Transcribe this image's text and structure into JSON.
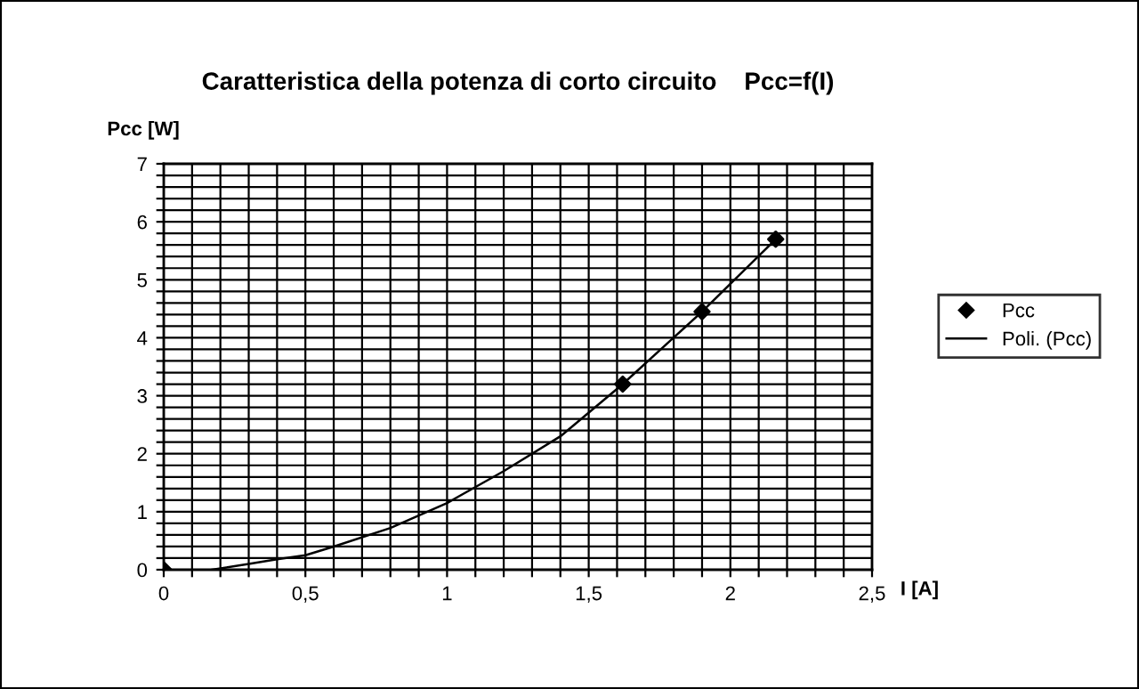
{
  "chart_data": {
    "type": "scatter",
    "title": "Caratteristica della potenza di corto circuito    Pcc=f(I)",
    "xlabel": "I [A]",
    "ylabel": "Pcc [W]",
    "series": [
      {
        "name": "Pcc",
        "color": "#000000",
        "marker": "diamond",
        "x": [
          0,
          1.62,
          1.9,
          2.16
        ],
        "values": [
          0,
          3.2,
          4.45,
          5.7
        ]
      },
      {
        "name": "Poli. (Pcc)",
        "type": "line",
        "color": "#000000",
        "marker": "none",
        "line_style": "solid",
        "x": [
          0.17,
          0.3,
          0.4,
          0.5,
          0.6,
          0.8,
          1.0,
          1.2,
          1.4,
          1.62,
          1.9,
          2.16
        ],
        "values": [
          0,
          0.1,
          0.18,
          0.25,
          0.4,
          0.72,
          1.15,
          1.7,
          2.3,
          3.2,
          4.45,
          5.7
        ]
      }
    ],
    "xlim": [
      0,
      2.5
    ],
    "ylim": [
      0,
      7
    ],
    "xticks": [
      0,
      {
        "value": 0.1,
        "label": null
      },
      {
        "value": 0.2,
        "label": null
      },
      {
        "value": 0.3,
        "label": null
      },
      {
        "value": 0.4,
        "label": null
      },
      {
        "value": 0.5,
        "label": "0,5"
      },
      {
        "value": 0.6,
        "label": null
      },
      {
        "value": 0.7,
        "label": null
      },
      {
        "value": 0.8,
        "label": null
      },
      {
        "value": 0.9,
        "label": null
      },
      1,
      {
        "value": 1.1,
        "label": null
      },
      {
        "value": 1.2,
        "label": null
      },
      {
        "value": 1.3,
        "label": null
      },
      {
        "value": 1.4,
        "label": null
      },
      {
        "value": 1.5,
        "label": "1,5"
      },
      {
        "value": 1.6,
        "label": null
      },
      {
        "value": 1.7,
        "label": null
      },
      {
        "value": 1.8,
        "label": null
      },
      {
        "value": 1.9,
        "label": null
      },
      2,
      {
        "value": 2.1,
        "label": null
      },
      {
        "value": 2.2,
        "label": null
      },
      {
        "value": 2.3,
        "label": null
      },
      {
        "value": 2.4,
        "label": null
      },
      {
        "value": 2.5,
        "label": "2,5"
      }
    ],
    "yticks": [
      0,
      {
        "value": 0.2,
        "label": null
      },
      {
        "value": 0.4,
        "label": null
      },
      {
        "value": 0.6,
        "label": null
      },
      {
        "value": 0.8,
        "label": null
      },
      1,
      {
        "value": 1.2,
        "label": null
      },
      {
        "value": 1.4,
        "label": null
      },
      {
        "value": 1.6,
        "label": null
      },
      {
        "value": 1.8,
        "label": null
      },
      2,
      {
        "value": 2.2,
        "label": null
      },
      {
        "value": 2.4,
        "label": null
      },
      {
        "value": 2.6,
        "label": null
      },
      {
        "value": 2.8,
        "label": null
      },
      3,
      {
        "value": 3.2,
        "label": null
      },
      {
        "value": 3.4,
        "label": null
      },
      {
        "value": 3.6,
        "label": null
      },
      {
        "value": 3.8,
        "label": null
      },
      4,
      {
        "value": 4.2,
        "label": null
      },
      {
        "value": 4.4,
        "label": null
      },
      {
        "value": 4.6,
        "label": null
      },
      {
        "value": 4.8,
        "label": null
      },
      5,
      {
        "value": 5.2,
        "label": null
      },
      {
        "value": 5.4,
        "label": null
      },
      {
        "value": 5.6,
        "label": null
      },
      {
        "value": 5.8,
        "label": null
      },
      6,
      {
        "value": 6.2,
        "label": null
      },
      {
        "value": 6.4,
        "label": null
      },
      {
        "value": 6.6,
        "label": null
      },
      {
        "value": 6.8,
        "label": null
      },
      7
    ],
    "grid": true,
    "legend": "right"
  }
}
